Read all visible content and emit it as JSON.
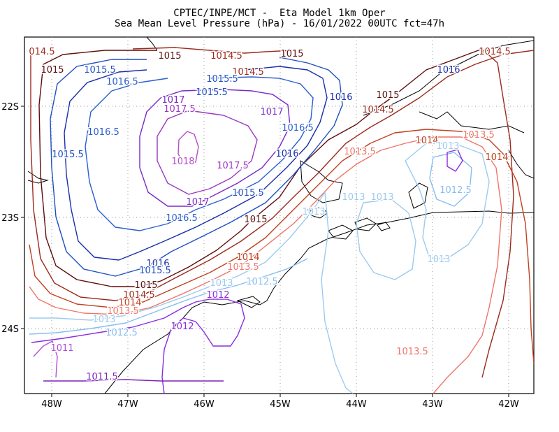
{
  "title": {
    "line1": "CPTEC/INPE/MCT -  Eta Model 1km Oper",
    "line2": "Sea Mean Level Pressure (hPa) - 16/01/2022 00UTC fct=47h"
  },
  "axes": {
    "lon_ticks": [
      "48W",
      "47W",
      "46W",
      "45W",
      "44W",
      "43W",
      "42W"
    ],
    "lat_ticks": [
      "22S",
      "23S",
      "24S"
    ]
  },
  "colors": {
    "1011": "#b04fd8",
    "1011.5": "#7b22b8",
    "1012": "#8a2be2",
    "1012.5": "#87bdf0",
    "1013": "#9ccbef",
    "1013.5": "#f07468",
    "1014": "#c0401f",
    "1014.5": "#9c2a1c",
    "1015": "#5e0d0d",
    "1015.5": "#1e4fc0",
    "1016": "#1a2ea8",
    "1016.5": "#2a5fd0",
    "1017": "#7a2bc8",
    "1017.5": "#9b37c2",
    "1018": "#b54fc8"
  },
  "contour_labels": [
    {
      "text": "014.5",
      "level": "1014.5"
    },
    {
      "text": "1015",
      "level": "1015"
    },
    {
      "text": "1014.5",
      "level": "1014.5"
    },
    {
      "text": "1015",
      "level": "1015"
    },
    {
      "text": "1014.5",
      "level": "1014.5"
    },
    {
      "text": "1015",
      "level": "1015"
    },
    {
      "text": "1015.5",
      "level": "1015.5"
    },
    {
      "text": "1014.5",
      "level": "1014.5"
    },
    {
      "text": "1016",
      "level": "1016"
    },
    {
      "text": "1015.5",
      "level": "1015.5"
    },
    {
      "text": "1016.5",
      "level": "1016.5"
    },
    {
      "text": "1016",
      "level": "1016"
    },
    {
      "text": "1015.5",
      "level": "1015.5"
    },
    {
      "text": "1015",
      "level": "1015"
    },
    {
      "text": "1017",
      "level": "1017"
    },
    {
      "text": "1017.5",
      "level": "1017.5"
    },
    {
      "text": "1017",
      "level": "1017"
    },
    {
      "text": "1014.5",
      "level": "1014.5"
    },
    {
      "text": "1016.5",
      "level": "1016.5"
    },
    {
      "text": "1016.5",
      "level": "1016.5"
    },
    {
      "text": "1013.5",
      "level": "1013.5"
    },
    {
      "text": "1014",
      "level": "1014"
    },
    {
      "text": "1015.5",
      "level": "1015.5"
    },
    {
      "text": "1016",
      "level": "1016"
    },
    {
      "text": "1013.5",
      "level": "1013.5"
    },
    {
      "text": "1013",
      "level": "1013"
    },
    {
      "text": "1014",
      "level": "1014"
    },
    {
      "text": "1018",
      "level": "1018"
    },
    {
      "text": "1017.5",
      "level": "1017.5"
    },
    {
      "text": "1015.5",
      "level": "1015.5"
    },
    {
      "text": "1013",
      "level": "1013"
    },
    {
      "text": "1013",
      "level": "1013"
    },
    {
      "text": "1012.5",
      "level": "1012.5"
    },
    {
      "text": "1017",
      "level": "1017"
    },
    {
      "text": "1013",
      "level": "1013"
    },
    {
      "text": "1016.5",
      "level": "1016.5"
    },
    {
      "text": "1015",
      "level": "1015"
    },
    {
      "text": "1014",
      "level": "1014"
    },
    {
      "text": "1013.5",
      "level": "1013.5"
    },
    {
      "text": "1013",
      "level": "1013"
    },
    {
      "text": "1016",
      "level": "1016"
    },
    {
      "text": "1015.5",
      "level": "1015.5"
    },
    {
      "text": "1015",
      "level": "1015"
    },
    {
      "text": "1013",
      "level": "1013"
    },
    {
      "text": "1012.5",
      "level": "1012.5"
    },
    {
      "text": "1014.5",
      "level": "1014.5"
    },
    {
      "text": "1012",
      "level": "1012"
    },
    {
      "text": "1014",
      "level": "1014"
    },
    {
      "text": "1013.5",
      "level": "1013.5"
    },
    {
      "text": "1013",
      "level": "1013"
    },
    {
      "text": "1012",
      "level": "1012"
    },
    {
      "text": "1012.5",
      "level": "1012.5"
    },
    {
      "text": "1011",
      "level": "1011"
    },
    {
      "text": "1013.5",
      "level": "1013.5"
    },
    {
      "text": "1011.5",
      "level": "1011.5"
    }
  ]
}
